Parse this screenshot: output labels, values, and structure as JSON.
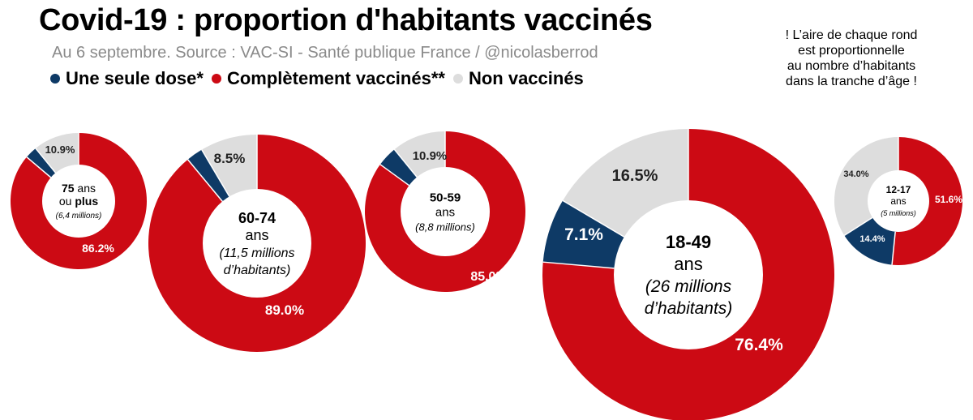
{
  "chart_data": {
    "type": "donut",
    "title": "Covid-19 : proportion d'habitants vaccinés",
    "subtitle": "Au 6 septembre. Source : VAC-SI - Santé publique France / @nicolasberrod",
    "note_lines": [
      "! L’aire de chaque rond",
      "est proportionnelle",
      "au nombre d’habitants",
      "dans la tranche d’âge !"
    ],
    "legend": [
      {
        "key": "one",
        "label": "Une seule dose*",
        "color": "#0e3a66"
      },
      {
        "key": "full",
        "label": "Complètement vaccinés**",
        "color": "#cc0a14"
      },
      {
        "key": "none",
        "label": "Non vaccinés",
        "color": "#dddddd"
      }
    ],
    "groups": [
      {
        "id": "g75",
        "age": "75",
        "age_suffix": "ans",
        "line2a": "ou ",
        "line2b": "plus",
        "population": "(6,4 millions)",
        "full": 86.2,
        "one": 2.9,
        "none": 10.9,
        "labels": {
          "full": "86.2%",
          "none": "10.9%",
          "one": ""
        }
      },
      {
        "id": "g60",
        "age": "60-74",
        "age_suffix": "ans",
        "population_lines": [
          "(11,5 millions",
          "d’habitants)"
        ],
        "full": 89.0,
        "one": 2.5,
        "none": 8.5,
        "labels": {
          "full": "89.0%",
          "none": "8.5%",
          "one": ""
        }
      },
      {
        "id": "g50",
        "age": "50-59",
        "age_suffix": "ans",
        "population": "(8,8 millions)",
        "full": 85.0,
        "one": 4.1,
        "none": 10.9,
        "labels": {
          "full": "85.0%",
          "none": "10.9%",
          "one": ""
        }
      },
      {
        "id": "g18",
        "age": "18-49",
        "age_suffix": "ans",
        "population_lines": [
          "(26 millions",
          "d’habitants)"
        ],
        "full": 76.4,
        "one": 7.1,
        "none": 16.5,
        "labels": {
          "full": "76.4%",
          "none": "16.5%",
          "one": "7.1%"
        }
      },
      {
        "id": "g12",
        "age": "12-17",
        "age_suffix": "ans",
        "population": "(5 millions)",
        "full": 51.6,
        "one": 14.4,
        "none": 34.0,
        "labels": {
          "full": "51.6%",
          "none": "34.0%",
          "one": "14.4%"
        }
      }
    ]
  }
}
